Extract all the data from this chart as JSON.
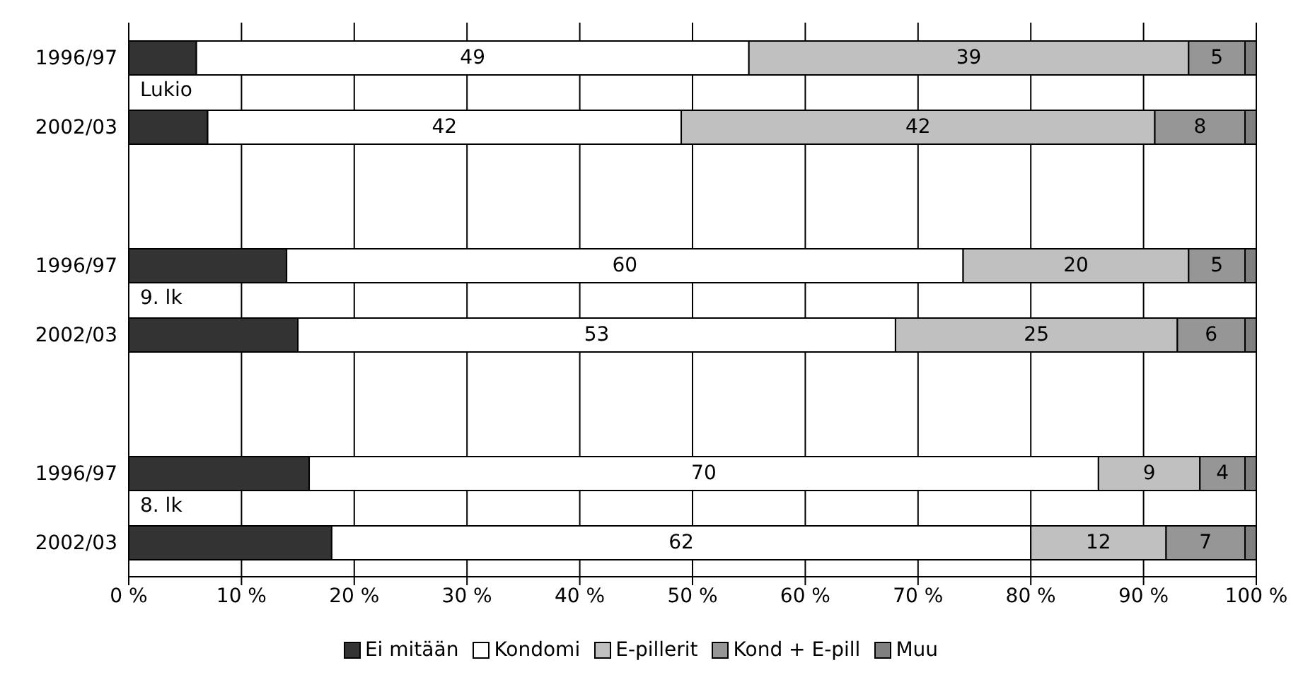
{
  "chart_data": {
    "type": "bar",
    "orientation": "horizontal",
    "stacked": true,
    "categories": [
      "1996/97",
      "2002/03",
      null,
      "1996/97",
      "2002/03",
      null,
      "1996/97",
      "2002/03"
    ],
    "series": [
      {
        "name": "Ei mitään",
        "color": "#333333",
        "values": [
          6,
          7,
          null,
          14,
          15,
          null,
          16,
          18
        ]
      },
      {
        "name": "Kondomi",
        "color": "#ffffff",
        "values": [
          49,
          42,
          null,
          60,
          53,
          null,
          70,
          62
        ],
        "value_labels": [
          "49",
          "42",
          null,
          "60",
          "53",
          null,
          "70",
          "62"
        ]
      },
      {
        "name": "E-pillerit",
        "color": "#c0c0c0",
        "values": [
          39,
          42,
          null,
          20,
          25,
          null,
          9,
          12
        ],
        "value_labels": [
          "39",
          "42",
          null,
          "20",
          "25",
          null,
          "9",
          "12"
        ]
      },
      {
        "name": "Kond + E-pill",
        "color": "#969696",
        "values": [
          5,
          8,
          null,
          5,
          6,
          null,
          4,
          7
        ],
        "value_labels": [
          "5",
          "8",
          null,
          "5",
          "6",
          null,
          "4",
          "7"
        ]
      },
      {
        "name": "Muu",
        "color": "#808080",
        "values": [
          1,
          1,
          null,
          1,
          1,
          null,
          1,
          1
        ]
      }
    ],
    "xlim": [
      0,
      100
    ],
    "xticks": [
      {
        "value": 0,
        "label": "0 %"
      },
      {
        "value": 10,
        "label": "10 %"
      },
      {
        "value": 20,
        "label": "20 %"
      },
      {
        "value": 30,
        "label": "30 %"
      },
      {
        "value": 40,
        "label": "40 %"
      },
      {
        "value": 50,
        "label": "50 %"
      },
      {
        "value": 60,
        "label": "60 %"
      },
      {
        "value": 70,
        "label": "70 %"
      },
      {
        "value": 80,
        "label": "80 %"
      },
      {
        "value": 90,
        "label": "90 %"
      },
      {
        "value": 100,
        "label": "100 %"
      }
    ],
    "grid": "x",
    "legend": "bottom",
    "annotations": [
      "Lukio",
      "9. lk",
      "8. lk"
    ]
  }
}
